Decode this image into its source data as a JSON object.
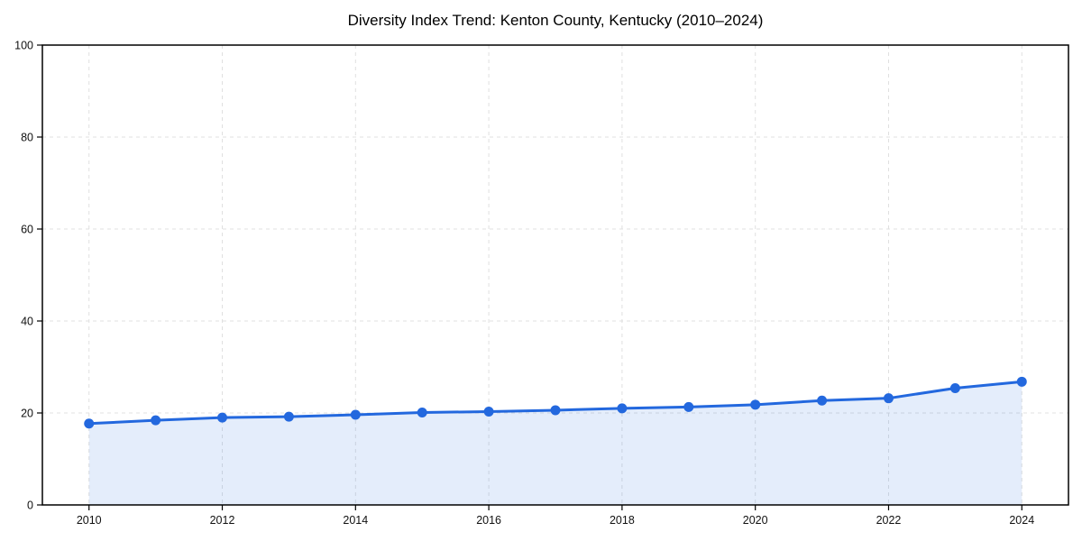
{
  "title": "Diversity Index Trend: Kenton County, Kentucky (2010–2024)",
  "colors": {
    "line": "#2368de",
    "marker": "#2368de",
    "area_fill": "rgba(35, 104, 222, 0.12)",
    "grid": "#e0e0e0",
    "spine": "#000000",
    "tick": "#000000",
    "tick_label": "#111111",
    "background": "#ffffff"
  },
  "chart_data": {
    "type": "line",
    "title": "Diversity Index Trend: Kenton County, Kentucky (2010–2024)",
    "xlabel": "",
    "ylabel": "",
    "x": [
      2010,
      2011,
      2012,
      2013,
      2014,
      2015,
      2016,
      2017,
      2018,
      2019,
      2020,
      2021,
      2022,
      2023,
      2024
    ],
    "series": [
      {
        "name": "Diversity Index",
        "values": [
          17.7,
          18.4,
          19.0,
          19.2,
          19.6,
          20.1,
          20.3,
          20.6,
          21.0,
          21.3,
          21.8,
          22.7,
          23.2,
          25.4,
          26.8
        ]
      }
    ],
    "xlim": [
      2009.3,
      2024.7
    ],
    "ylim": [
      0,
      100
    ],
    "xticks": [
      2010,
      2012,
      2014,
      2016,
      2018,
      2020,
      2022,
      2024
    ],
    "yticks": [
      0,
      20,
      40,
      60,
      80,
      100
    ],
    "grid": "both, dashed",
    "legend": "none",
    "marker": "circle",
    "area_fill": true
  }
}
